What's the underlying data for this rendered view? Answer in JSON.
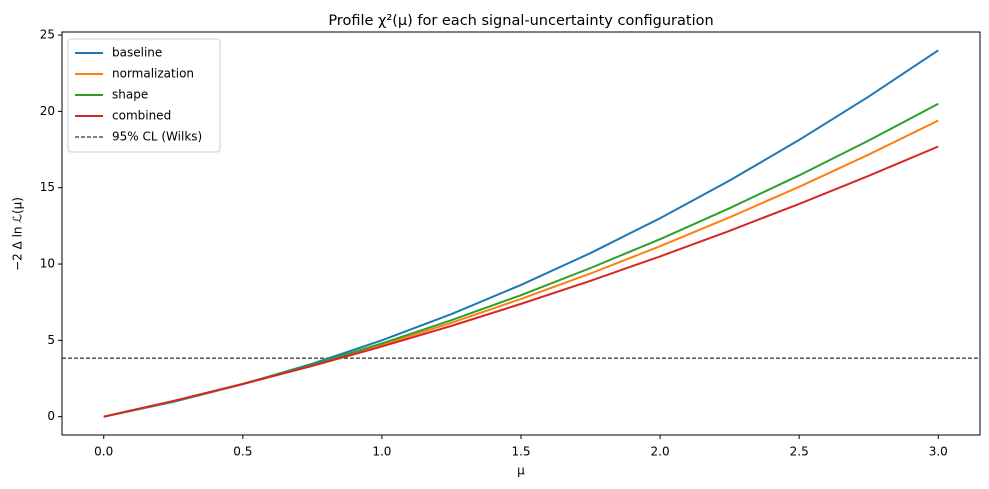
{
  "chart_data": {
    "type": "line",
    "title": "Profile χ²(μ) for each signal-uncertainty configuration",
    "xlabel": "μ",
    "ylabel": "−2 Δ ln ℒ(μ)",
    "x": [
      0,
      0.25,
      0.5,
      0.75,
      1,
      1.25,
      1.5,
      1.75,
      2,
      2.25,
      2.5,
      2.75,
      3
    ],
    "series": [
      {
        "name": "baseline",
        "color": "#1f77b4",
        "values": [
          0,
          0.97,
          2.13,
          3.47,
          5.0,
          6.72,
          8.63,
          10.72,
          13.0,
          15.47,
          18.13,
          20.97,
          24.0
        ]
      },
      {
        "name": "normalization",
        "color": "#ff7f0e",
        "values": [
          0,
          1.01,
          2.13,
          3.36,
          4.7,
          6.15,
          7.71,
          9.38,
          11.17,
          13.06,
          15.06,
          17.17,
          19.4
        ]
      },
      {
        "name": "shape",
        "color": "#2ca02c",
        "values": [
          0,
          1.01,
          2.15,
          3.41,
          4.8,
          6.32,
          7.96,
          9.74,
          11.63,
          13.66,
          15.81,
          18.09,
          20.5
        ]
      },
      {
        "name": "combined",
        "color": "#d62728",
        "values": [
          0,
          1.03,
          2.14,
          3.33,
          4.6,
          5.95,
          7.39,
          8.9,
          10.5,
          12.18,
          13.94,
          15.78,
          17.7
        ]
      }
    ],
    "reference_lines": [
      {
        "name": "95% CL (Wilks)",
        "value": 3.84,
        "color": "#000000",
        "dashed": true
      }
    ],
    "xlim": [
      -0.15,
      3.15
    ],
    "xticks": [
      {
        "value": 0,
        "label": "0.0"
      },
      {
        "value": 0.5,
        "label": "0.5"
      },
      {
        "value": 1,
        "label": "1.0"
      },
      {
        "value": 1.5,
        "label": "1.5"
      },
      {
        "value": 2,
        "label": "2.0"
      },
      {
        "value": 2.5,
        "label": "2.5"
      },
      {
        "value": 3,
        "label": "3.0"
      }
    ],
    "ylim": [
      -1.2,
      25.2
    ],
    "yticks": [
      0,
      5,
      10,
      15,
      20,
      25
    ],
    "legend": "upper left",
    "grid": false
  }
}
